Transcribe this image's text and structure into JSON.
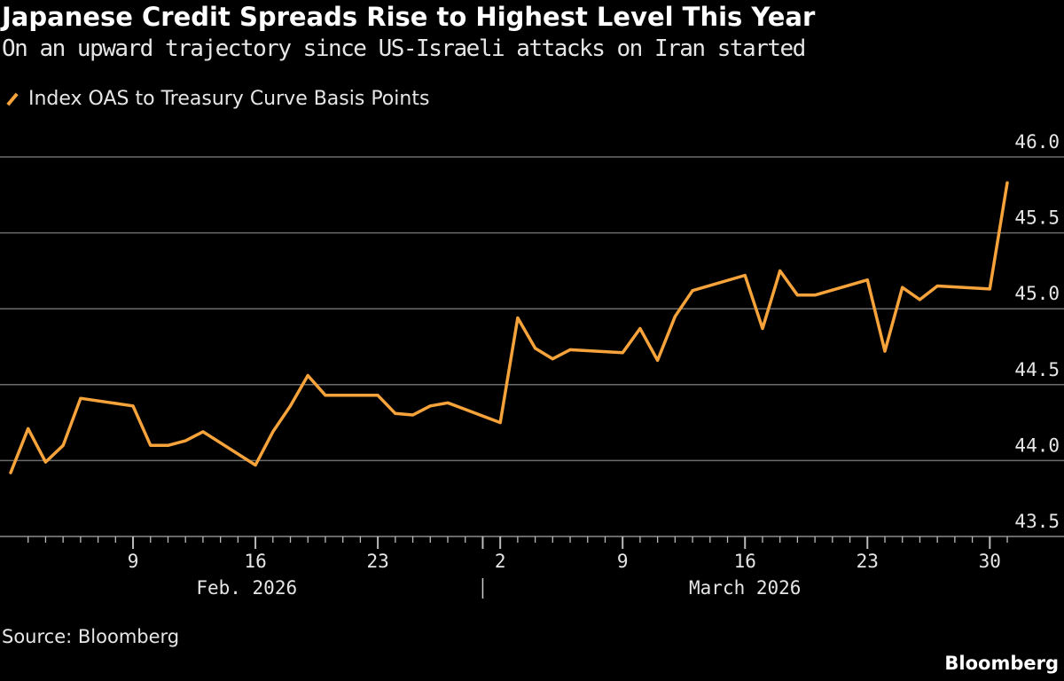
{
  "header": {
    "title": "Japanese Credit Spreads Rise to Highest Level This Year",
    "subtitle": "On an upward trajectory since US-Israeli attacks on Iran started"
  },
  "footer": {
    "source": "Source: Bloomberg",
    "brand": "Bloomberg"
  },
  "colors": {
    "line": "#f7a33b",
    "grid": "#6b6b6b",
    "background": "#000000"
  },
  "chart_data": {
    "type": "line",
    "title": "Japanese Credit Spreads Rise to Highest Level This Year",
    "xlabel": "",
    "ylabel": "",
    "ylim": [
      43.5,
      46.0
    ],
    "yticks": [
      "43.5",
      "44.0",
      "44.5",
      "45.0",
      "45.5",
      "46.0"
    ],
    "grid": true,
    "legend_position": "top-left",
    "xticks": [
      {
        "day": 7,
        "label": "9"
      },
      {
        "day": 14,
        "label": "16"
      },
      {
        "day": 21,
        "label": "23"
      },
      {
        "day": 28,
        "label": "2"
      },
      {
        "day": 35,
        "label": "9"
      },
      {
        "day": 42,
        "label": "16"
      },
      {
        "day": 49,
        "label": "23"
      },
      {
        "day": 56,
        "label": "30"
      }
    ],
    "month_labels": [
      {
        "day": 13.5,
        "label": "Feb. 2026"
      },
      {
        "day": 42,
        "label": "March 2026"
      }
    ],
    "month_separator_day": 27,
    "series": [
      {
        "name": "Index OAS to Treasury Curve Basis Points",
        "x": [
          "2026-02-02",
          "2026-02-03",
          "2026-02-04",
          "2026-02-05",
          "2026-02-06",
          "2026-02-09",
          "2026-02-10",
          "2026-02-11",
          "2026-02-12",
          "2026-02-13",
          "2026-02-16",
          "2026-02-17",
          "2026-02-18",
          "2026-02-19",
          "2026-02-20",
          "2026-02-23",
          "2026-02-24",
          "2026-02-25",
          "2026-02-26",
          "2026-02-27",
          "2026-03-02",
          "2026-03-03",
          "2026-03-04",
          "2026-03-05",
          "2026-03-06",
          "2026-03-09",
          "2026-03-10",
          "2026-03-11",
          "2026-03-12",
          "2026-03-13",
          "2026-03-16",
          "2026-03-17",
          "2026-03-18",
          "2026-03-19",
          "2026-03-20",
          "2026-03-23",
          "2026-03-24",
          "2026-03-25",
          "2026-03-26",
          "2026-03-27",
          "2026-03-30",
          "2026-03-31"
        ],
        "day": [
          0,
          1,
          2,
          3,
          4,
          7,
          8,
          9,
          10,
          11,
          14,
          15,
          16,
          17,
          18,
          21,
          22,
          23,
          24,
          25,
          28,
          29,
          30,
          31,
          32,
          35,
          36,
          37,
          38,
          39,
          42,
          43,
          44,
          45,
          46,
          49,
          50,
          51,
          52,
          53,
          56,
          57
        ],
        "values": [
          43.92,
          44.21,
          43.99,
          44.1,
          44.41,
          44.36,
          44.1,
          44.1,
          44.13,
          44.19,
          43.97,
          44.19,
          44.36,
          44.56,
          44.43,
          44.43,
          44.31,
          44.3,
          44.36,
          44.38,
          44.25,
          44.94,
          44.74,
          44.67,
          44.73,
          44.71,
          44.87,
          44.66,
          44.95,
          45.12,
          45.22,
          44.87,
          45.25,
          45.09,
          45.09,
          45.19,
          44.72,
          45.14,
          45.06,
          45.15,
          45.13,
          45.83
        ]
      }
    ]
  }
}
